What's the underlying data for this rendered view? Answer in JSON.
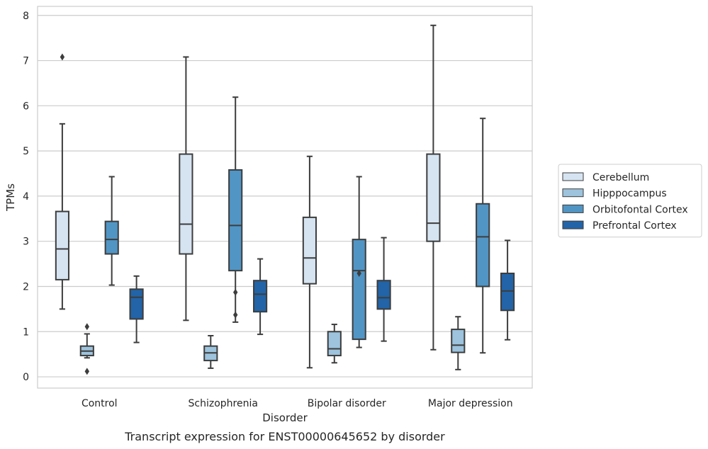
{
  "chart_data": {
    "type": "box",
    "caption": "Transcript expression for ENST00000645652 by disorder",
    "xlabel": "Disorder",
    "ylabel": "TPMs",
    "ylim": [
      -0.25,
      8.2
    ],
    "yticks": [
      0,
      1,
      2,
      3,
      4,
      5,
      6,
      7,
      8
    ],
    "grid": true,
    "legend_position": "right",
    "categories": [
      "Control",
      "Schizophrenia",
      "Bipolar disorder",
      "Major depression"
    ],
    "series": [
      {
        "name": "Cerebellum",
        "color": "#d6e4f2",
        "boxes": [
          {
            "whislo": 1.5,
            "q1": 2.15,
            "med": 2.83,
            "q3": 3.66,
            "whishi": 5.6,
            "fliers": [
              7.08
            ]
          },
          {
            "whislo": 1.25,
            "q1": 2.72,
            "med": 3.38,
            "q3": 4.93,
            "whishi": 7.08,
            "fliers": []
          },
          {
            "whislo": 0.2,
            "q1": 2.06,
            "med": 2.63,
            "q3": 3.53,
            "whishi": 4.88,
            "fliers": []
          },
          {
            "whislo": 0.6,
            "q1": 3.0,
            "med": 3.4,
            "q3": 4.93,
            "whishi": 7.78,
            "fliers": []
          }
        ]
      },
      {
        "name": "Hipppocampus",
        "color": "#9dc3dd",
        "boxes": [
          {
            "whislo": 0.42,
            "q1": 0.47,
            "med": 0.57,
            "q3": 0.68,
            "whishi": 0.95,
            "fliers": [
              1.11,
              0.12
            ]
          },
          {
            "whislo": 0.19,
            "q1": 0.36,
            "med": 0.53,
            "q3": 0.68,
            "whishi": 0.91,
            "fliers": []
          },
          {
            "whislo": 0.31,
            "q1": 0.47,
            "med": 0.62,
            "q3": 1.0,
            "whishi": 1.16,
            "fliers": []
          },
          {
            "whislo": 0.16,
            "q1": 0.54,
            "med": 0.7,
            "q3": 1.05,
            "whishi": 1.33,
            "fliers": []
          }
        ]
      },
      {
        "name": "Orbitofontal Cortex",
        "color": "#5195c5",
        "boxes": [
          {
            "whislo": 2.03,
            "q1": 2.72,
            "med": 3.04,
            "q3": 3.44,
            "whishi": 4.43,
            "fliers": []
          },
          {
            "whislo": 1.21,
            "q1": 2.35,
            "med": 3.35,
            "q3": 4.58,
            "whishi": 6.19,
            "fliers": [
              1.87,
              1.37
            ]
          },
          {
            "whislo": 0.65,
            "q1": 0.83,
            "med": 2.35,
            "q3": 3.04,
            "whishi": 4.43,
            "fliers": [
              2.29
            ]
          },
          {
            "whislo": 0.53,
            "q1": 2.0,
            "med": 3.1,
            "q3": 3.83,
            "whishi": 5.72,
            "fliers": []
          }
        ]
      },
      {
        "name": "Prefrontal Cortex",
        "color": "#2264a7",
        "boxes": [
          {
            "whislo": 0.76,
            "q1": 1.28,
            "med": 1.76,
            "q3": 1.94,
            "whishi": 2.23,
            "fliers": []
          },
          {
            "whislo": 0.94,
            "q1": 1.44,
            "med": 1.83,
            "q3": 2.13,
            "whishi": 2.61,
            "fliers": []
          },
          {
            "whislo": 0.79,
            "q1": 1.5,
            "med": 1.75,
            "q3": 2.13,
            "whishi": 3.08,
            "fliers": []
          },
          {
            "whislo": 0.82,
            "q1": 1.47,
            "med": 1.9,
            "q3": 2.29,
            "whishi": 3.02,
            "fliers": []
          }
        ]
      }
    ]
  }
}
